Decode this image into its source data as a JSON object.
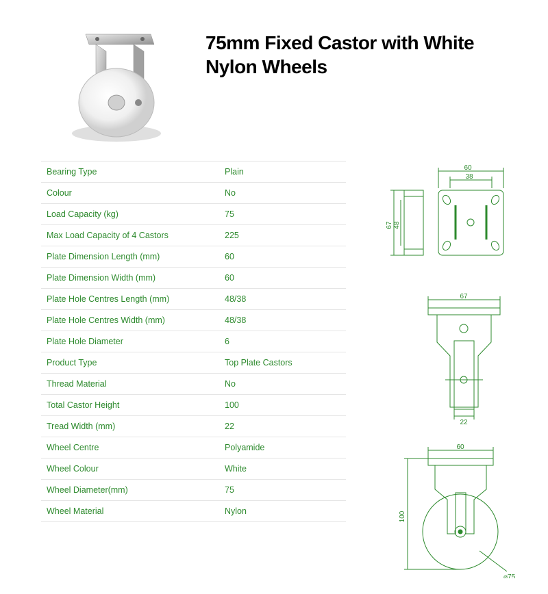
{
  "title": "75mm Fixed Castor with White Nylon Wheels",
  "colors": {
    "text_green": "#2d8a2d",
    "title_black": "#000000",
    "border_gray": "#e5e5e5",
    "diagram_stroke": "#2d8a2d",
    "background": "#ffffff"
  },
  "typography": {
    "title_fontsize": 28,
    "title_weight": 900,
    "spec_fontsize": 12.5
  },
  "specs": [
    {
      "label": "Bearing Type",
      "value": "Plain"
    },
    {
      "label": "Colour",
      "value": "No"
    },
    {
      "label": "Load Capacity (kg)",
      "value": "75"
    },
    {
      "label": "Max Load Capacity of 4 Castors",
      "value": "225"
    },
    {
      "label": "Plate Dimension Length (mm)",
      "value": "60"
    },
    {
      "label": "Plate Dimension Width (mm)",
      "value": "60"
    },
    {
      "label": "Plate Hole Centres Length (mm)",
      "value": "48/38"
    },
    {
      "label": "Plate Hole Centres Width (mm)",
      "value": "48/38"
    },
    {
      "label": "Plate Hole Diameter",
      "value": "6"
    },
    {
      "label": "Product Type",
      "value": "Top Plate Castors"
    },
    {
      "label": "Thread Material",
      "value": "No"
    },
    {
      "label": "Total Castor Height",
      "value": "100"
    },
    {
      "label": "Tread Width (mm)",
      "value": "22"
    },
    {
      "label": "Wheel Centre",
      "value": "Polyamide"
    },
    {
      "label": "Wheel Colour",
      "value": "White"
    },
    {
      "label": "Wheel Diameter(mm)",
      "value": "75"
    },
    {
      "label": "Wheel Material",
      "value": "Nylon"
    }
  ],
  "diagrams": {
    "top_view": {
      "width": 60,
      "inner_width": 38,
      "depth": 48,
      "outer_depth": 67
    },
    "front_view": {
      "width": 67,
      "tread": 22
    },
    "side_view": {
      "plate_width": 60,
      "height": 100,
      "wheel_diameter": 75
    }
  }
}
